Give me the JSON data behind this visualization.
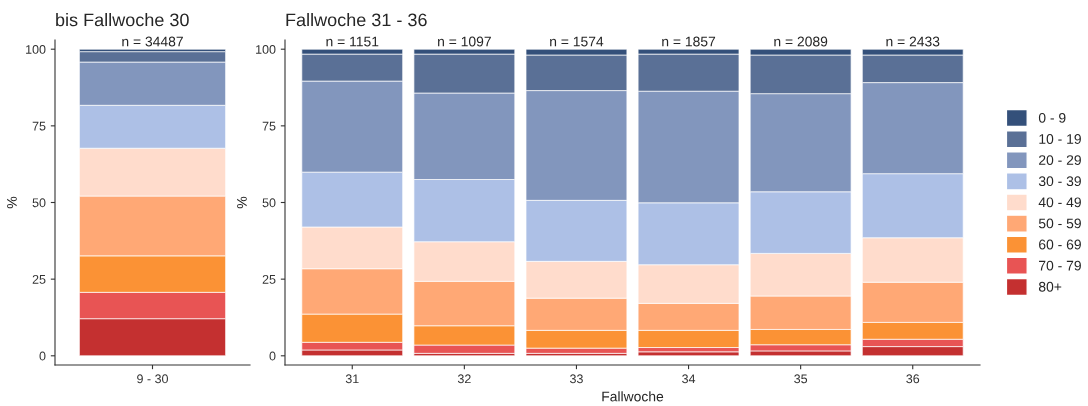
{
  "chart_data": [
    {
      "type": "bar",
      "title": "bis Fallwoche 30",
      "ylabel": "%",
      "categories": [
        "9 - 30"
      ],
      "stacked": true,
      "ylim": [
        -3,
        103
      ],
      "yticks": [
        0,
        25,
        50,
        75,
        100
      ],
      "grid": false,
      "legend": false,
      "series": [
        {
          "color": "#c43030",
          "values": [
            12.1
          ]
        },
        {
          "color": "#e85454",
          "values": [
            8.6
          ]
        },
        {
          "color": "#fb9235",
          "values": [
            11.9
          ]
        },
        {
          "color": "#ffa875",
          "values": [
            19.5
          ]
        },
        {
          "color": "#ffdccc",
          "values": [
            15.6
          ]
        },
        {
          "color": "#adc0e6",
          "values": [
            14.0
          ]
        },
        {
          "color": "#8296bd",
          "values": [
            14.1
          ]
        },
        {
          "color": "#5a7096",
          "values": [
            3.4
          ]
        },
        {
          "color": "#34507a",
          "values": [
            0.8
          ]
        }
      ],
      "annotations": [
        {
          "text": "n = 34487",
          "x": "9 - 30",
          "y": 100
        }
      ]
    },
    {
      "type": "bar",
      "title": "Fallwoche 31 - 36",
      "xlabel": "Fallwoche",
      "ylabel": "%",
      "categories": [
        "31",
        "32",
        "33",
        "34",
        "35",
        "36"
      ],
      "stacked": true,
      "ylim": [
        -3,
        103
      ],
      "yticks": [
        0,
        25,
        50,
        75,
        100
      ],
      "grid": false,
      "legend": "right",
      "series": [
        {
          "name": "80+",
          "color": "#c43030",
          "values": [
            1.9,
            0.8,
            0.8,
            1.3,
            1.6,
            3.0
          ]
        },
        {
          "name": "70 - 79",
          "color": "#e85454",
          "values": [
            2.5,
            2.7,
            1.7,
            1.4,
            2.0,
            2.4
          ]
        },
        {
          "name": "60 - 69",
          "color": "#fb9235",
          "values": [
            9.2,
            6.3,
            5.8,
            5.6,
            5.0,
            5.5
          ]
        },
        {
          "name": "50 - 59",
          "color": "#ffa875",
          "values": [
            14.8,
            14.5,
            10.5,
            8.8,
            10.9,
            13.1
          ]
        },
        {
          "name": "40 - 49",
          "color": "#ffdccc",
          "values": [
            13.6,
            12.9,
            12.0,
            12.6,
            13.9,
            14.5
          ]
        },
        {
          "name": "30 - 39",
          "color": "#adc0e6",
          "values": [
            17.9,
            20.3,
            19.9,
            20.2,
            20.1,
            20.9
          ]
        },
        {
          "name": "20 - 29",
          "color": "#8296bd",
          "values": [
            29.7,
            28.2,
            35.8,
            36.4,
            32.0,
            29.7
          ]
        },
        {
          "name": "10 - 19",
          "color": "#5a7096",
          "values": [
            8.8,
            12.7,
            11.6,
            12.1,
            12.6,
            9.0
          ]
        },
        {
          "name": "0 - 9",
          "color": "#34507a",
          "values": [
            1.6,
            1.6,
            1.9,
            1.6,
            1.9,
            1.9
          ]
        }
      ],
      "annotations": [
        {
          "text": "n = 1151",
          "x": "31",
          "y": 100
        },
        {
          "text": "n = 1097",
          "x": "32",
          "y": 100
        },
        {
          "text": "n = 1574",
          "x": "33",
          "y": 100
        },
        {
          "text": "n = 1857",
          "x": "34",
          "y": 100
        },
        {
          "text": "n = 2089",
          "x": "35",
          "y": 100
        },
        {
          "text": "n = 2433",
          "x": "36",
          "y": 100
        }
      ]
    }
  ]
}
